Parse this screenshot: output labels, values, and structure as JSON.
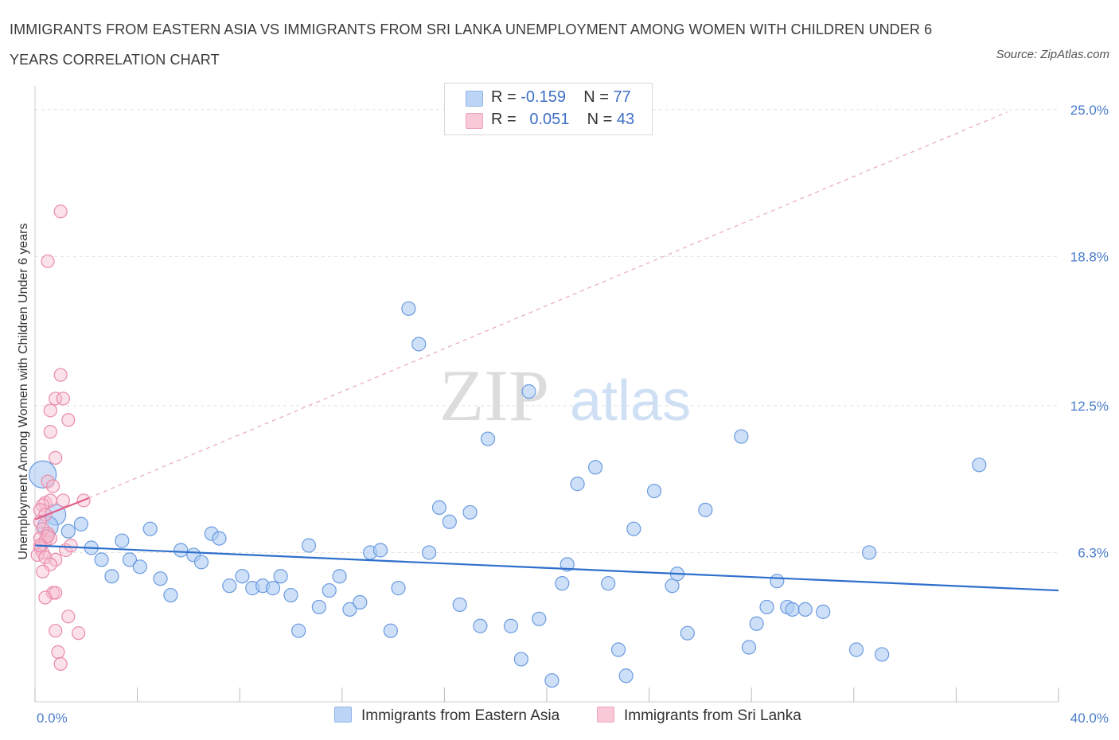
{
  "title": "IMMIGRANTS FROM EASTERN ASIA VS IMMIGRANTS FROM SRI LANKA UNEMPLOYMENT AMONG WOMEN WITH CHILDREN UNDER 6 YEARS CORRELATION CHART",
  "source": "Source: ZipAtlas.com",
  "watermark": {
    "zip": "ZIP",
    "atlas": "atlas"
  },
  "colors": {
    "blue_fill": "#aecbf3",
    "blue_stroke": "#6a9be0",
    "blue_line": "#2e6fcc",
    "pink_fill": "#f7bcd0",
    "pink_stroke": "#e98aa9",
    "pink_line": "#e0608a",
    "tick_text": "#4a7cc9",
    "grid": "#e2e2e2"
  },
  "legend": {
    "rows": [
      {
        "r_label": "R = ",
        "r_value": "-0.159",
        "n_label": "N = ",
        "n_value": "77",
        "color": "#aecbf3"
      },
      {
        "r_label": "R = ",
        "r_value": "0.051",
        "n_label": "N = ",
        "n_value": "43",
        "color": "#f7bcd0"
      }
    ]
  },
  "chart_data": {
    "type": "scatter",
    "title": "IMMIGRANTS FROM EASTERN ASIA VS IMMIGRANTS FROM SRI LANKA UNEMPLOYMENT AMONG WOMEN WITH CHILDREN UNDER 6 YEARS CORRELATION CHART",
    "xlabel": "",
    "ylabel": "Unemployment Among Women with Children Under 6 years",
    "xlim": [
      0,
      40
    ],
    "ylim": [
      0,
      26
    ],
    "x_ticks": [
      0,
      40
    ],
    "x_tick_labels": [
      "0.0%",
      "40.0%"
    ],
    "y_ticks": [
      6.3,
      12.5,
      18.8,
      25.0
    ],
    "y_tick_labels": [
      "6.3%",
      "12.5%",
      "18.8%",
      "25.0%"
    ],
    "grid": true,
    "legend_position": "top-center",
    "series": [
      {
        "name": "Immigrants from Eastern Asia",
        "color": "#aecbf3",
        "R": -0.159,
        "N": 77,
        "trend": {
          "x": [
            0,
            40
          ],
          "y": [
            6.6,
            4.7
          ]
        },
        "points": [
          {
            "x": 0.3,
            "y": 9.6,
            "s": "xl"
          },
          {
            "x": 0.8,
            "y": 7.9,
            "s": "l"
          },
          {
            "x": 0.5,
            "y": 7.4,
            "s": "l"
          },
          {
            "x": 1.3,
            "y": 7.2,
            "s": "m"
          },
          {
            "x": 1.8,
            "y": 7.5,
            "s": "m"
          },
          {
            "x": 2.2,
            "y": 6.5,
            "s": "m"
          },
          {
            "x": 2.6,
            "y": 6.0,
            "s": "m"
          },
          {
            "x": 3.0,
            "y": 5.3,
            "s": "m"
          },
          {
            "x": 3.4,
            "y": 6.8,
            "s": "m"
          },
          {
            "x": 3.7,
            "y": 6.0,
            "s": "m"
          },
          {
            "x": 4.1,
            "y": 5.7,
            "s": "m"
          },
          {
            "x": 4.5,
            "y": 7.3,
            "s": "m"
          },
          {
            "x": 4.9,
            "y": 5.2,
            "s": "m"
          },
          {
            "x": 5.3,
            "y": 4.5,
            "s": "m"
          },
          {
            "x": 5.7,
            "y": 6.4,
            "s": "m"
          },
          {
            "x": 6.2,
            "y": 6.2,
            "s": "m"
          },
          {
            "x": 6.5,
            "y": 5.9,
            "s": "m"
          },
          {
            "x": 6.9,
            "y": 7.1,
            "s": "m"
          },
          {
            "x": 7.2,
            "y": 6.9,
            "s": "m"
          },
          {
            "x": 7.6,
            "y": 4.9,
            "s": "m"
          },
          {
            "x": 8.1,
            "y": 5.3,
            "s": "m"
          },
          {
            "x": 8.5,
            "y": 4.8,
            "s": "m"
          },
          {
            "x": 8.9,
            "y": 4.9,
            "s": "m"
          },
          {
            "x": 9.3,
            "y": 4.8,
            "s": "m"
          },
          {
            "x": 9.6,
            "y": 5.3,
            "s": "m"
          },
          {
            "x": 10.0,
            "y": 4.5,
            "s": "m"
          },
          {
            "x": 10.3,
            "y": 3.0,
            "s": "m"
          },
          {
            "x": 10.7,
            "y": 6.6,
            "s": "m"
          },
          {
            "x": 11.1,
            "y": 4.0,
            "s": "m"
          },
          {
            "x": 11.5,
            "y": 4.7,
            "s": "m"
          },
          {
            "x": 11.9,
            "y": 5.3,
            "s": "m"
          },
          {
            "x": 12.3,
            "y": 3.9,
            "s": "m"
          },
          {
            "x": 12.7,
            "y": 4.2,
            "s": "m"
          },
          {
            "x": 13.1,
            "y": 6.3,
            "s": "m"
          },
          {
            "x": 13.5,
            "y": 6.4,
            "s": "m"
          },
          {
            "x": 13.9,
            "y": 3.0,
            "s": "m"
          },
          {
            "x": 14.2,
            "y": 4.8,
            "s": "m"
          },
          {
            "x": 14.6,
            "y": 16.6,
            "s": "m"
          },
          {
            "x": 15.0,
            "y": 15.1,
            "s": "m"
          },
          {
            "x": 15.4,
            "y": 6.3,
            "s": "m"
          },
          {
            "x": 15.8,
            "y": 8.2,
            "s": "m"
          },
          {
            "x": 16.2,
            "y": 7.6,
            "s": "m"
          },
          {
            "x": 16.6,
            "y": 4.1,
            "s": "m"
          },
          {
            "x": 17.0,
            "y": 8.0,
            "s": "m"
          },
          {
            "x": 17.4,
            "y": 3.2,
            "s": "m"
          },
          {
            "x": 17.7,
            "y": 11.1,
            "s": "m"
          },
          {
            "x": 18.6,
            "y": 3.2,
            "s": "m"
          },
          {
            "x": 19.0,
            "y": 1.8,
            "s": "m"
          },
          {
            "x": 19.3,
            "y": 13.1,
            "s": "m"
          },
          {
            "x": 19.7,
            "y": 3.5,
            "s": "m"
          },
          {
            "x": 20.2,
            "y": 0.9,
            "s": "m"
          },
          {
            "x": 20.6,
            "y": 5.0,
            "s": "m"
          },
          {
            "x": 20.8,
            "y": 5.8,
            "s": "m"
          },
          {
            "x": 21.2,
            "y": 9.2,
            "s": "m"
          },
          {
            "x": 21.9,
            "y": 9.9,
            "s": "m"
          },
          {
            "x": 22.4,
            "y": 5.0,
            "s": "m"
          },
          {
            "x": 22.8,
            "y": 2.2,
            "s": "m"
          },
          {
            "x": 23.1,
            "y": 1.1,
            "s": "m"
          },
          {
            "x": 23.4,
            "y": 7.3,
            "s": "m"
          },
          {
            "x": 24.2,
            "y": 8.9,
            "s": "m"
          },
          {
            "x": 24.9,
            "y": 4.9,
            "s": "m"
          },
          {
            "x": 25.1,
            "y": 5.4,
            "s": "m"
          },
          {
            "x": 25.5,
            "y": 2.9,
            "s": "m"
          },
          {
            "x": 26.2,
            "y": 8.1,
            "s": "m"
          },
          {
            "x": 27.6,
            "y": 11.2,
            "s": "m"
          },
          {
            "x": 27.9,
            "y": 2.3,
            "s": "m"
          },
          {
            "x": 28.2,
            "y": 3.3,
            "s": "m"
          },
          {
            "x": 28.6,
            "y": 4.0,
            "s": "m"
          },
          {
            "x": 29.0,
            "y": 5.1,
            "s": "m"
          },
          {
            "x": 29.4,
            "y": 4.0,
            "s": "m"
          },
          {
            "x": 29.6,
            "y": 3.9,
            "s": "m"
          },
          {
            "x": 30.1,
            "y": 3.9,
            "s": "m"
          },
          {
            "x": 30.8,
            "y": 3.8,
            "s": "m"
          },
          {
            "x": 32.1,
            "y": 2.2,
            "s": "m"
          },
          {
            "x": 32.6,
            "y": 6.3,
            "s": "m"
          },
          {
            "x": 33.1,
            "y": 2.0,
            "s": "m"
          },
          {
            "x": 36.9,
            "y": 10.0,
            "s": "m"
          }
        ]
      },
      {
        "name": "Immigrants from Sri Lanka",
        "color": "#f7bcd0",
        "R": 0.051,
        "N": 43,
        "trend": {
          "x": [
            0,
            2.1
          ],
          "y": [
            7.7,
            8.6
          ]
        },
        "trend_extended": {
          "x": [
            2.1,
            38.0
          ],
          "y": [
            8.6,
            24.9
          ]
        },
        "points": [
          {
            "x": 1.0,
            "y": 20.7
          },
          {
            "x": 0.5,
            "y": 18.6
          },
          {
            "x": 1.0,
            "y": 13.8
          },
          {
            "x": 0.8,
            "y": 12.8
          },
          {
            "x": 1.1,
            "y": 12.8
          },
          {
            "x": 0.6,
            "y": 12.3
          },
          {
            "x": 1.3,
            "y": 11.9
          },
          {
            "x": 0.6,
            "y": 11.4
          },
          {
            "x": 0.8,
            "y": 10.3
          },
          {
            "x": 0.5,
            "y": 9.3
          },
          {
            "x": 0.7,
            "y": 9.1
          },
          {
            "x": 1.1,
            "y": 8.5
          },
          {
            "x": 0.4,
            "y": 8.4
          },
          {
            "x": 0.6,
            "y": 8.5
          },
          {
            "x": 1.9,
            "y": 8.5
          },
          {
            "x": 0.3,
            "y": 8.3
          },
          {
            "x": 0.2,
            "y": 8.1
          },
          {
            "x": 0.4,
            "y": 7.9
          },
          {
            "x": 0.2,
            "y": 7.6
          },
          {
            "x": 0.3,
            "y": 7.3
          },
          {
            "x": 0.5,
            "y": 7.1
          },
          {
            "x": 0.2,
            "y": 6.9
          },
          {
            "x": 0.4,
            "y": 6.8
          },
          {
            "x": 0.6,
            "y": 6.9
          },
          {
            "x": 0.2,
            "y": 6.5
          },
          {
            "x": 0.3,
            "y": 6.3
          },
          {
            "x": 0.1,
            "y": 6.2
          },
          {
            "x": 0.4,
            "y": 6.1
          },
          {
            "x": 0.8,
            "y": 6.0
          },
          {
            "x": 1.2,
            "y": 6.4
          },
          {
            "x": 1.4,
            "y": 6.6
          },
          {
            "x": 0.6,
            "y": 5.8
          },
          {
            "x": 0.3,
            "y": 5.5
          },
          {
            "x": 0.7,
            "y": 4.6
          },
          {
            "x": 0.4,
            "y": 4.4
          },
          {
            "x": 0.8,
            "y": 4.6
          },
          {
            "x": 1.3,
            "y": 3.6
          },
          {
            "x": 0.8,
            "y": 3.0
          },
          {
            "x": 1.7,
            "y": 2.9
          },
          {
            "x": 0.9,
            "y": 2.1
          },
          {
            "x": 1.0,
            "y": 1.6
          },
          {
            "x": 0.2,
            "y": 6.6
          },
          {
            "x": 0.5,
            "y": 7.0
          }
        ]
      }
    ]
  },
  "bottom_legend": [
    {
      "label": "Immigrants from Eastern Asia",
      "color": "#aecbf3"
    },
    {
      "label": "Immigrants from Sri Lanka",
      "color": "#f7bcd0"
    }
  ]
}
